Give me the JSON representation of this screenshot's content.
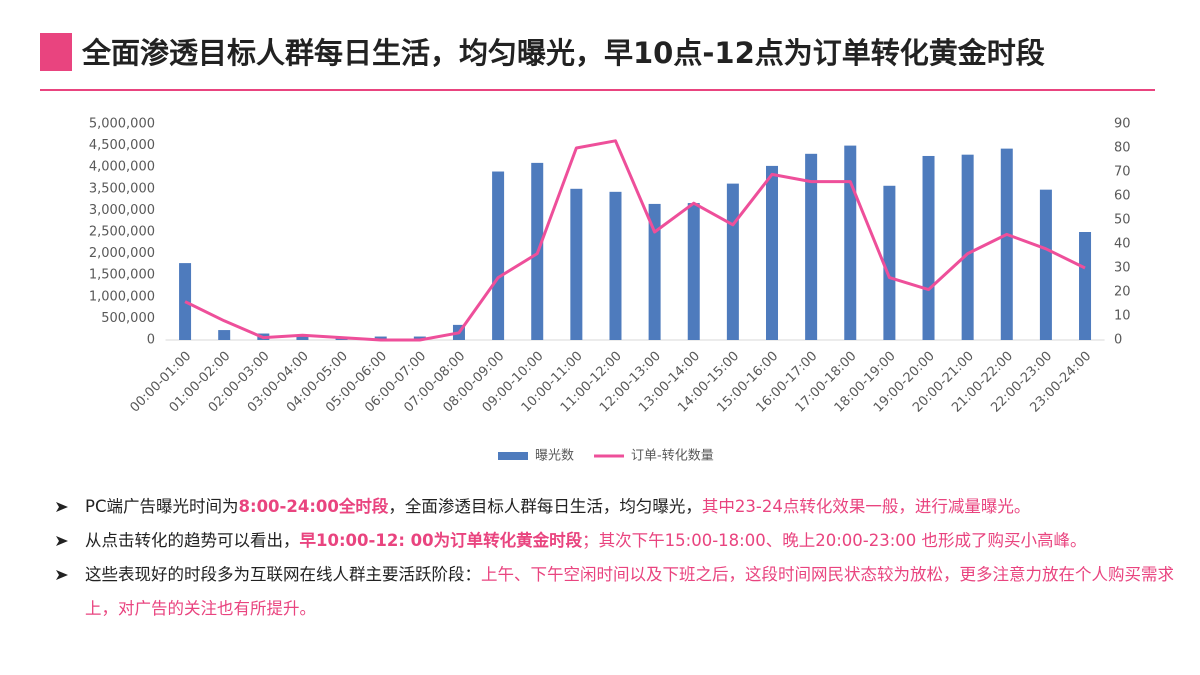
{
  "header": {
    "title": "全面渗透目标人群每日生活，均匀曝光，早10点-12点为订单转化黄金时段"
  },
  "chart_data": {
    "type": "bar-line",
    "categories": [
      "00:00-01:00",
      "01:00-02:00",
      "02:00-03:00",
      "03:00-04:00",
      "04:00-05:00",
      "05:00-06:00",
      "06:00-07:00",
      "07:00-08:00",
      "08:00-09:00",
      "09:00-10:00",
      "10:00-11:00",
      "11:00-12:00",
      "12:00-13:00",
      "13:00-14:00",
      "14:00-15:00",
      "15:00-16:00",
      "16:00-17:00",
      "17:00-18:00",
      "18:00-19:00",
      "19:00-20:00",
      "20:00-21:00",
      "21:00-22:00",
      "22:00-23:00",
      "23:00-24:00"
    ],
    "series": [
      {
        "name": "曝光数",
        "type": "bar",
        "color": "#4e7bbd",
        "values": [
          1780000,
          230000,
          150000,
          110000,
          80000,
          80000,
          80000,
          350000,
          3900000,
          4100000,
          3500000,
          3430000,
          3150000,
          3170000,
          3620000,
          4030000,
          4310000,
          4500000,
          3570000,
          4260000,
          4290000,
          4430000,
          3480000,
          2500000
        ]
      },
      {
        "name": "订单-转化数量",
        "type": "line",
        "axis": "y2",
        "color": "#ee4f9a",
        "values": [
          16,
          8,
          1,
          2,
          1,
          0,
          0,
          3,
          26,
          36,
          80,
          83,
          45,
          57,
          48,
          69,
          66,
          66,
          26,
          21,
          36,
          44,
          38,
          30
        ]
      }
    ],
    "ylim": [
      0,
      5000000
    ],
    "yticks": [
      0,
      {
        "value": 500000,
        "label": "500,000"
      },
      {
        "value": 1000000,
        "label": "1,000,000"
      },
      {
        "value": 1500000,
        "label": "1,500,000"
      },
      {
        "value": 2000000,
        "label": "2,000,000"
      },
      {
        "value": 2500000,
        "label": "2,500,000"
      },
      {
        "value": 3000000,
        "label": "3,000,000"
      },
      {
        "value": 3500000,
        "label": "3,500,000"
      },
      {
        "value": 4000000,
        "label": "4,000,000"
      },
      {
        "value": 4500000,
        "label": "4,500,000"
      },
      {
        "value": 5000000,
        "label": "5,000,000"
      }
    ],
    "y2lim": [
      0,
      90
    ],
    "y2ticks": [
      0,
      10,
      20,
      30,
      40,
      50,
      60,
      70,
      80,
      90
    ],
    "grid": false,
    "legend": "bottom"
  },
  "bullets": [
    [
      {
        "text": "PC端广告曝光时间为",
        "style": "plain"
      },
      {
        "text": "8:00-24:00全时段",
        "style": "strong"
      },
      {
        "text": "，全面渗透目标人群每日生活，均匀曝光，",
        "style": "plain"
      },
      {
        "text": "其中23-24点转化效果一般，进行减量曝光。",
        "style": "accent"
      }
    ],
    [
      {
        "text": "从点击转化的趋势可以看出，",
        "style": "plain"
      },
      {
        "text": "早10:00-12: 00为订单转化黄金时段",
        "style": "strong"
      },
      {
        "text": "；其次下午15:00-18:00、晚上20:00-23:00 也形成了购买小高峰。",
        "style": "accent"
      }
    ],
    [
      {
        "text": "这些表现好的时段多为互联网在线人群主要活跃阶段：",
        "style": "plain"
      },
      {
        "text": "上午、下午空闲时间以及下班之后，这段时间网民状态较为放松，更多注意力放在个人购买需求上，对广告的关注也有所提升。",
        "style": "accent"
      }
    ]
  ]
}
